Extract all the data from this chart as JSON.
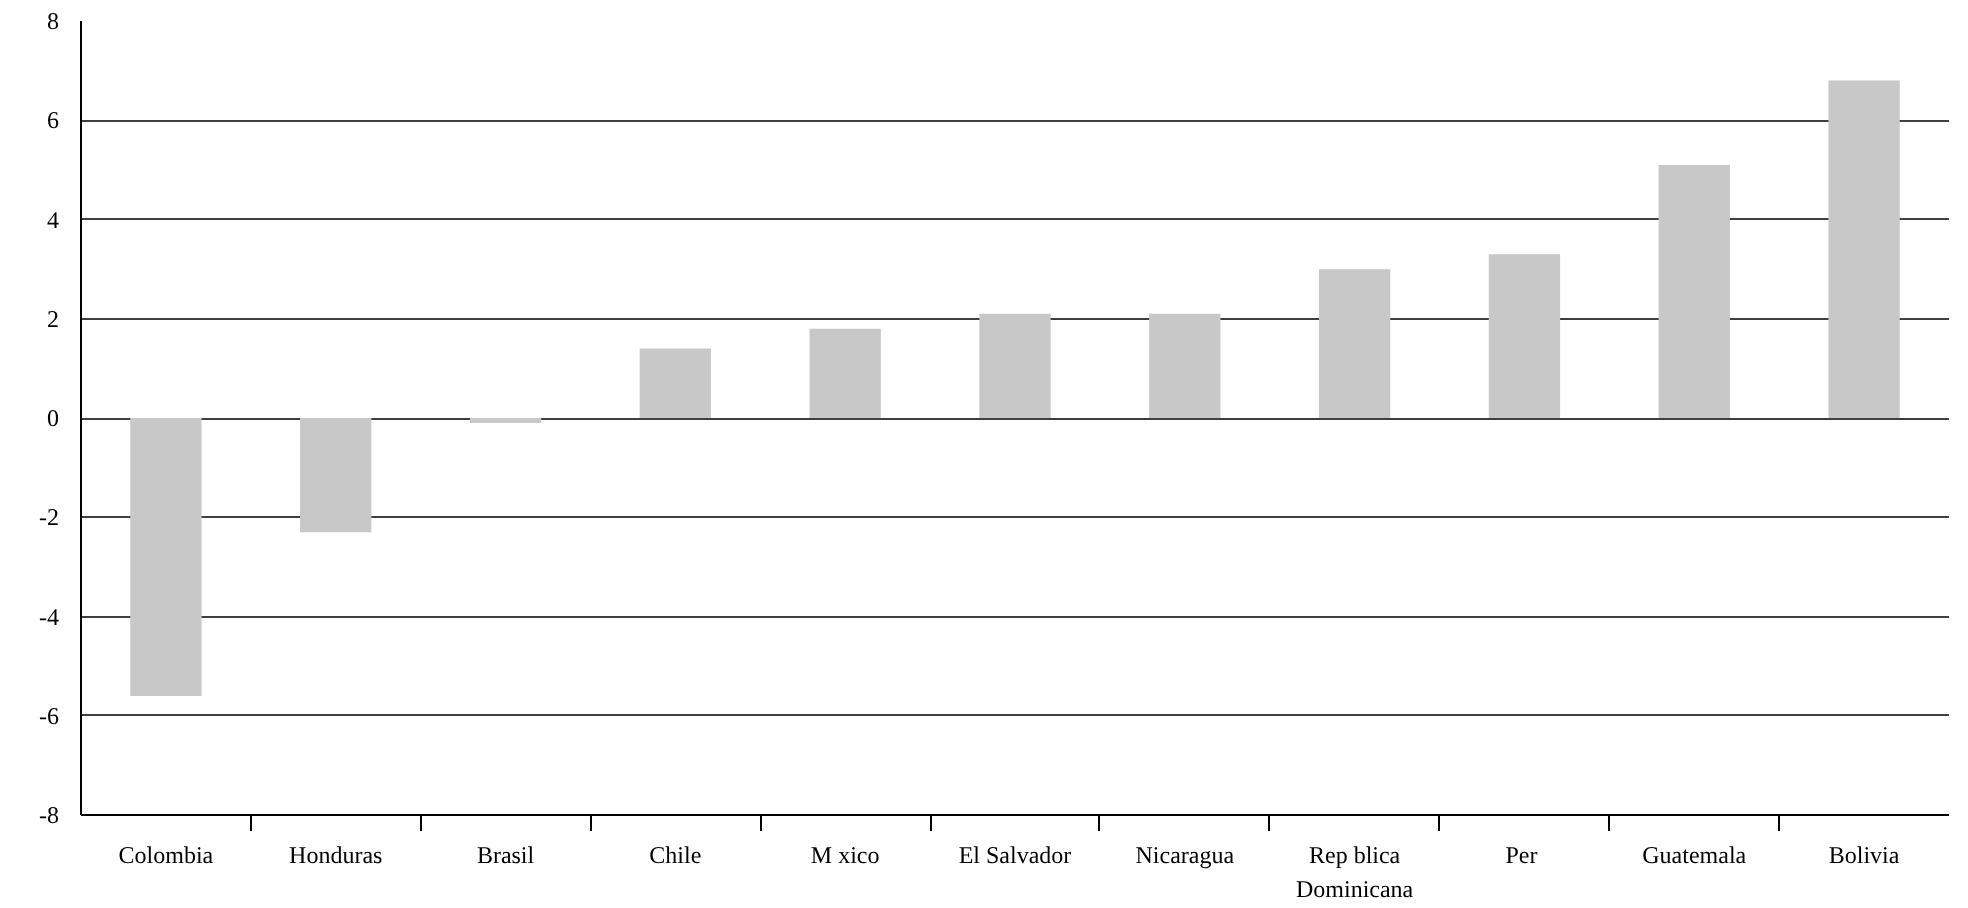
{
  "chart_data": {
    "type": "bar",
    "categories": [
      "Colombia",
      "Honduras",
      "Brasil",
      "Chile",
      "M xico",
      "El Salvador",
      "Nicaragua",
      "Rep blica Dominicana",
      "Per ",
      "Guatemala",
      "Bolivia"
    ],
    "values": [
      -5.6,
      -2.3,
      -0.1,
      1.4,
      1.8,
      2.1,
      2.1,
      3.0,
      3.3,
      5.1,
      6.8
    ],
    "color": "#c8c8c8",
    "ylim": [
      -8,
      8
    ],
    "yticks": [
      -8,
      -6,
      -4,
      -2,
      0,
      2,
      4,
      6,
      8
    ],
    "grid": "y"
  }
}
